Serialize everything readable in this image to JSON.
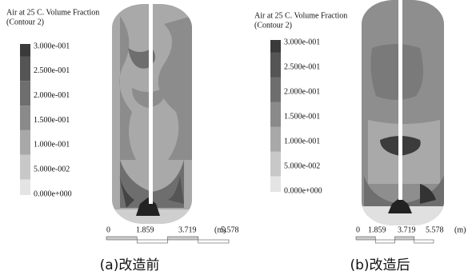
{
  "panels": [
    {
      "legend_title": [
        "Air at 25 C. Volume Fraction",
        "(Contour 2)"
      ],
      "legend_labels": [
        "3.000e-001",
        "2.500e-001",
        "2.000e-001",
        "1.500e-001",
        "1.000e-001",
        "5.000e-002",
        "0.000e+000"
      ],
      "scale_labels": [
        "0",
        "1.859",
        "3.719",
        "5.578"
      ],
      "scale_unit": "(m)",
      "caption": "(a)改造前"
    },
    {
      "legend_title": [
        "Air at 25 C. Volume Fraction",
        "(Contour 2)"
      ],
      "legend_labels": [
        "3.000e-001",
        "2.500e-001",
        "2.000e-001",
        "1.500e-001",
        "1.000e-001",
        "5.000e-002",
        "0.000e+000"
      ],
      "scale_labels": [
        "0",
        "1.859",
        "3.719",
        "5.578"
      ],
      "scale_unit": "(m)",
      "caption": "(b)改造后"
    }
  ]
}
